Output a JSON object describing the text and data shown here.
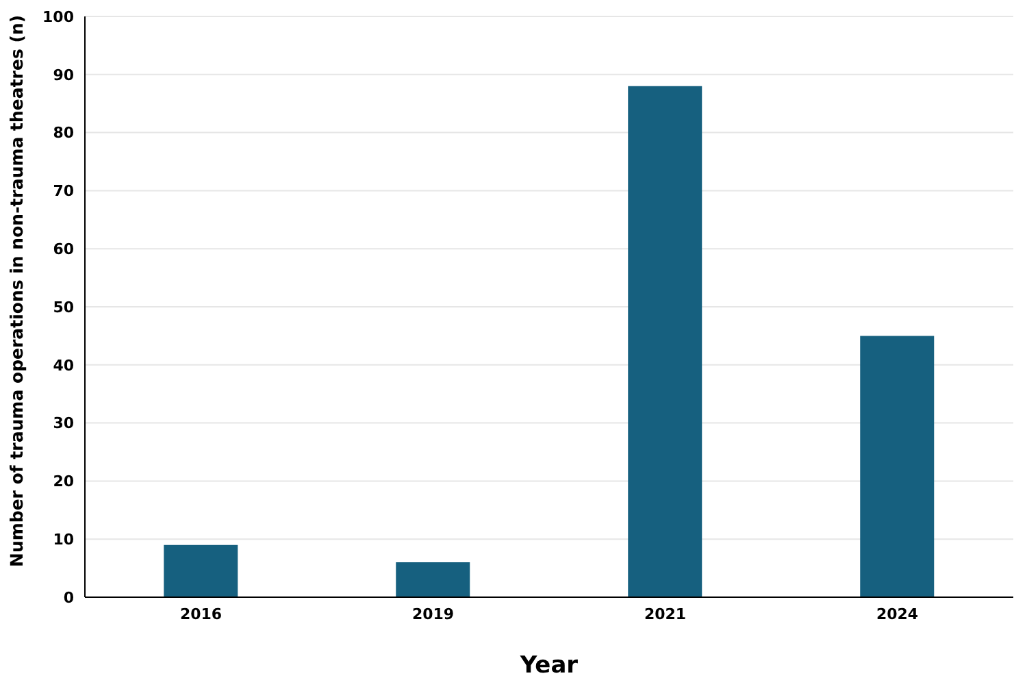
{
  "chart_data": {
    "type": "bar",
    "xlabel": "Year",
    "ylabel": "Number of trauma operations in non-trauma theatres (n)",
    "categories": [
      "2016",
      "2019",
      "2021",
      "2024"
    ],
    "values": [
      9,
      6,
      88,
      45
    ],
    "color": "#16607f",
    "ylim": [
      0,
      100
    ],
    "yticks": [
      0,
      10,
      20,
      30,
      40,
      50,
      60,
      70,
      80,
      90,
      100
    ],
    "grid": "y"
  }
}
